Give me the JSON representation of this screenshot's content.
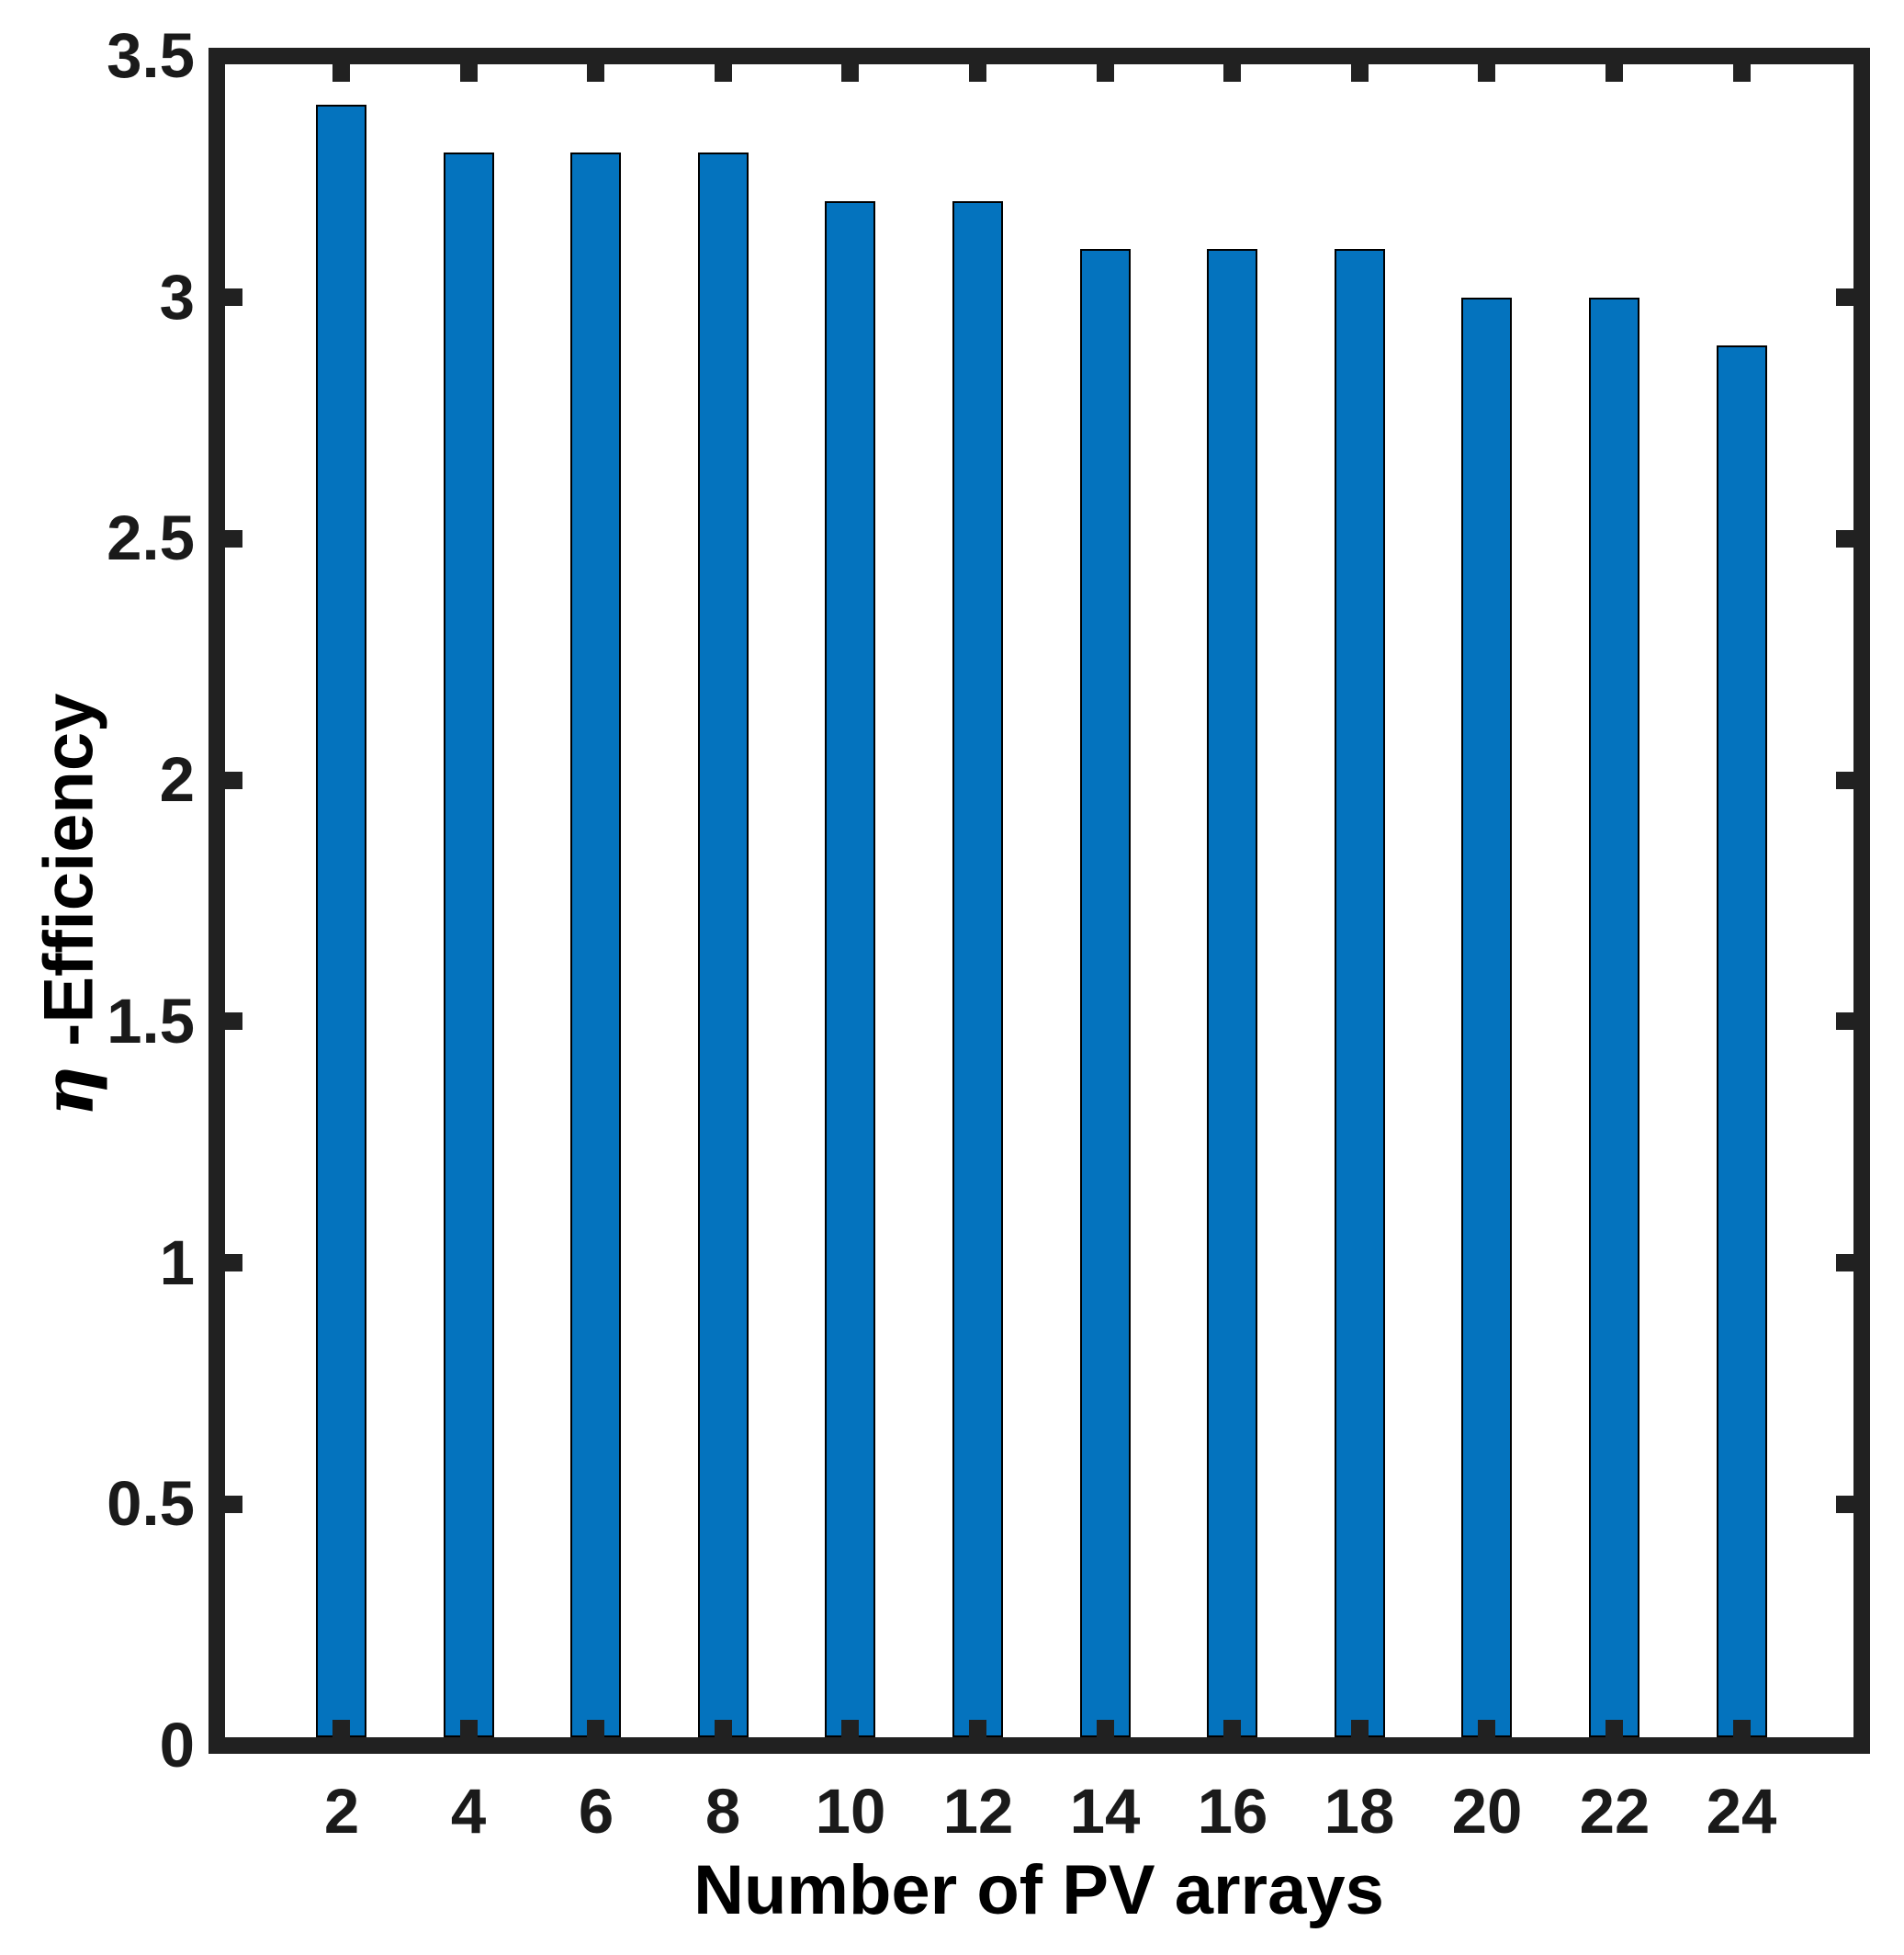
{
  "chart_data": {
    "type": "bar",
    "title": "",
    "xlabel": "Number of PV arrays",
    "ylabel": "η -Efficiency",
    "ylabel_symbol": "η",
    "ylabel_rest": " -Efficiency",
    "categories": [
      "2",
      "4",
      "6",
      "8",
      "10",
      "12",
      "14",
      "16",
      "18",
      "20",
      "22",
      "24"
    ],
    "values": [
      3.4,
      3.3,
      3.3,
      3.3,
      3.2,
      3.2,
      3.1,
      3.1,
      3.1,
      3.0,
      3.0,
      2.9
    ],
    "series": [
      {
        "name": "Efficiency",
        "values": [
          3.4,
          3.3,
          3.3,
          3.3,
          3.2,
          3.2,
          3.1,
          3.1,
          3.1,
          3.0,
          3.0,
          2.9
        ]
      }
    ],
    "ylim": [
      0,
      3.5
    ],
    "ytick_values": [
      0,
      0.5,
      1,
      1.5,
      2,
      2.5,
      3,
      3.5
    ],
    "ytick_labels": [
      "0",
      "0.5",
      "1",
      "1.5",
      "2",
      "2.5",
      "3",
      "3.5"
    ],
    "xtick_side_values": [
      0.5,
      1,
      1.5,
      2,
      2.5,
      3
    ],
    "grid": false,
    "legend": null,
    "box": true,
    "tick_direction": "in",
    "bar_width_fraction": 0.4,
    "colors": {
      "bar_fill": "#0473BE",
      "bar_edge": "#000000",
      "axis": "#212121",
      "tick_label": "#1a1a1a",
      "axis_label": "#000000",
      "background": "#ffffff"
    }
  }
}
